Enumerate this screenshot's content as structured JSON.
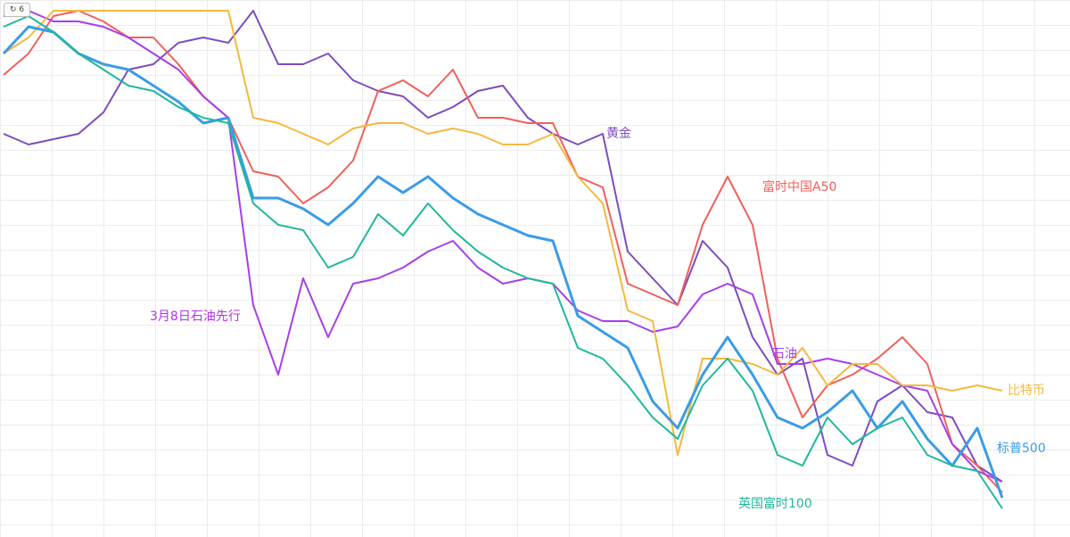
{
  "ui": {
    "reset_button": "↻ 6"
  },
  "chart_data": {
    "type": "line",
    "annotation": "3月8日石油先行",
    "annotation_color": "#b035e6",
    "ylim": [
      0,
      100
    ],
    "grid": true,
    "series": [
      {
        "name": "黄金",
        "color": "#7d4cbf",
        "values": [
          75,
          73,
          74,
          75,
          79,
          87,
          88,
          92,
          93,
          92,
          98,
          88,
          88,
          90,
          85,
          83,
          82,
          78,
          80,
          83,
          84,
          78,
          75,
          73,
          75,
          53,
          48,
          43,
          55,
          50,
          37,
          30,
          33,
          15,
          13,
          25,
          28,
          23,
          22,
          13,
          10
        ]
      },
      {
        "name": "富时中国A50",
        "color": "#f0605a",
        "values": [
          86,
          90,
          97,
          98,
          96,
          93,
          93,
          88,
          82,
          78,
          68,
          67,
          62,
          65,
          70,
          83,
          85,
          82,
          87,
          78,
          78,
          77,
          77,
          67,
          65,
          47,
          45,
          43,
          58,
          67,
          58,
          33,
          22,
          28,
          30,
          33,
          37,
          32,
          17,
          13,
          8
        ]
      },
      {
        "name": "石油",
        "color": "#a93de8",
        "values": [
          97,
          98,
          96,
          96,
          95,
          93,
          90,
          87,
          82,
          78,
          43,
          30,
          48,
          37,
          47,
          48,
          50,
          53,
          55,
          50,
          47,
          48,
          47,
          42,
          40,
          40,
          38,
          39,
          45,
          47,
          45,
          32,
          32,
          33,
          32,
          30,
          28,
          27,
          17,
          12,
          10
        ]
      },
      {
        "name": "比特币",
        "color": "#f5b83d",
        "values": [
          90,
          93,
          98,
          98,
          98,
          98,
          98,
          98,
          98,
          98,
          78,
          77,
          75,
          73,
          76,
          77,
          77,
          75,
          76,
          75,
          73,
          73,
          75,
          67,
          62,
          42,
          40,
          15,
          33,
          33,
          32,
          30,
          35,
          28,
          32,
          32,
          28,
          28,
          27,
          28,
          27
        ]
      },
      {
        "name": "标普500",
        "color": "#3a9ce6",
        "values": [
          90,
          95,
          94,
          90,
          88,
          87,
          84,
          81,
          77,
          78,
          63,
          63,
          61,
          58,
          62,
          67,
          64,
          67,
          63,
          60,
          58,
          56,
          55,
          41,
          38,
          35,
          25,
          20,
          30,
          37,
          30,
          22,
          20,
          23,
          27,
          20,
          25,
          18,
          13,
          20,
          7
        ]
      },
      {
        "name": "英国富时100",
        "color": "#1fb89c",
        "values": [
          95,
          97,
          94,
          90,
          87,
          84,
          83,
          80,
          78,
          77,
          62,
          58,
          57,
          50,
          52,
          60,
          56,
          62,
          57,
          53,
          50,
          48,
          47,
          35,
          33,
          28,
          22,
          18,
          28,
          33,
          27,
          15,
          13,
          22,
          17,
          20,
          22,
          15,
          13,
          12,
          5
        ]
      }
    ]
  }
}
